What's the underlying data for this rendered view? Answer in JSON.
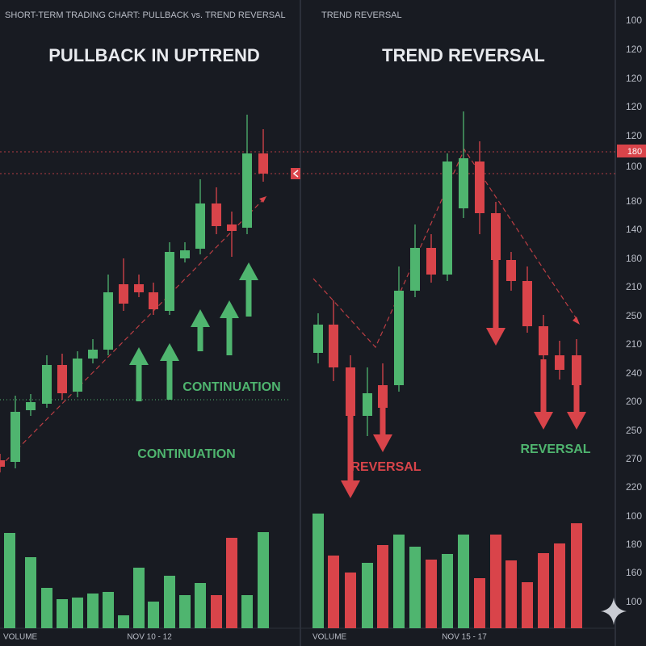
{
  "header": {
    "left": "SHORT-TERM TRADING CHART: PULLBACK vs. TREND REVERSAL",
    "right": "TREND REVERSAL"
  },
  "panels": [
    {
      "title": "PULLBACK IN UPTREND",
      "annotations": [
        "CONTINUATION",
        "CONTINUATION"
      ],
      "footer": [
        "VOLUME",
        "NOV 10 - 12"
      ]
    },
    {
      "title": "TREND REVERSAL",
      "annotations": [
        "REVERSAL",
        "REVERSAL"
      ],
      "footer": [
        "VOLUME",
        "NOV 15 - 17"
      ]
    }
  ],
  "axis_labels": [
    "100",
    "120",
    "120",
    "120",
    "120",
    "100",
    "180",
    "140",
    "180",
    "210",
    "250",
    "210",
    "240",
    "200",
    "250",
    "270",
    "220",
    "100",
    "180",
    "160",
    "100"
  ],
  "price_badge": "180"
}
